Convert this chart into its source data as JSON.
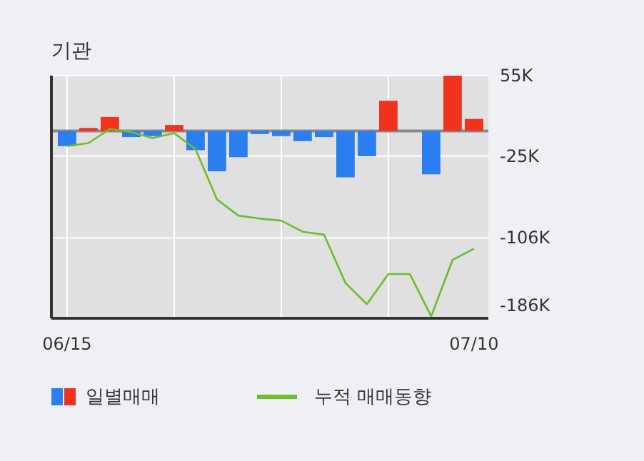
{
  "chart_data": {
    "type": "bar",
    "title": "기관",
    "categories": [
      "06/15",
      null,
      null,
      null,
      null,
      null,
      null,
      null,
      null,
      null,
      null,
      null,
      null,
      null,
      null,
      null,
      null,
      null,
      null,
      "07/10"
    ],
    "series": [
      {
        "name": "일별매매",
        "colors": [
          "#2a7ef0",
          "#f0321e",
          "#f0321e",
          "#2a7ef0",
          "#2a7ef0",
          "#f0321e",
          "#2a7ef0",
          "#2a7ef0",
          "#2a7ef0",
          "#2a7ef0",
          "#2a7ef0",
          "#2a7ef0",
          "#2a7ef0",
          "#2a7ef0",
          "#2a7ef0",
          "#f0321e",
          "#f0321e",
          "#2a7ef0",
          "#f0321e",
          "#f0321e"
        ],
        "values": [
          -15,
          3,
          14,
          -6,
          -5,
          6,
          -19,
          -40,
          -26,
          -3,
          -5,
          -10,
          -6,
          -46,
          -25,
          30,
          0,
          -43,
          55,
          12
        ]
      },
      {
        "name": "누적 매매동향",
        "type": "line",
        "color": "#6abf2a",
        "values": [
          -15,
          -12,
          2,
          -1,
          -7,
          -2,
          -18,
          -68,
          -84,
          -87,
          -89,
          -100,
          -103,
          -151,
          -172,
          -142,
          -142,
          -184,
          -128,
          -117
        ]
      }
    ],
    "ylim": [
      -186,
      55
    ],
    "yticks": [
      {
        "value": 55,
        "label": "55K"
      },
      {
        "value": -25,
        "label": "-25K"
      },
      {
        "value": -106,
        "label": "-106K"
      },
      {
        "value": -186,
        "label": "-186K"
      }
    ],
    "ref_lines": [
      {
        "axis": "y",
        "value": 0,
        "color": "#8a8a8a"
      }
    ],
    "grid": true,
    "legend": "bottom"
  }
}
